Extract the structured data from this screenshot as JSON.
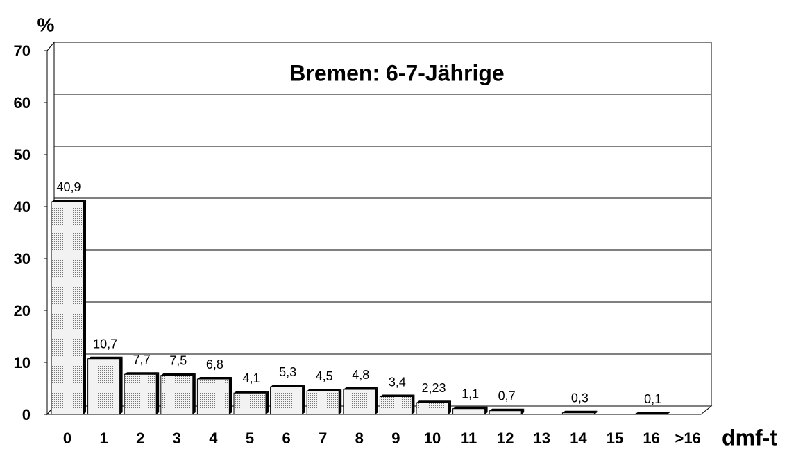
{
  "chart_data": {
    "type": "bar",
    "title": "Bremen: 6-7-Jährige",
    "y_label": "%",
    "x_label": "dmf-t",
    "categories": [
      "0",
      "1",
      "2",
      "3",
      "4",
      "5",
      "6",
      "7",
      "8",
      "9",
      "10",
      "11",
      "12",
      "13",
      "14",
      "15",
      "16",
      ">16"
    ],
    "values": [
      40.9,
      10.7,
      7.7,
      7.5,
      6.8,
      4.1,
      5.3,
      4.5,
      4.8,
      3.4,
      2.23,
      1.1,
      0.7,
      null,
      0.3,
      null,
      0.1,
      null
    ],
    "value_labels": [
      "40,9",
      "10,7",
      "7,7",
      "7,5",
      "6,8",
      "4,1",
      "5,3",
      "4,5",
      "4,8",
      "3,4",
      "2,23",
      "1,1",
      "0,7",
      null,
      "0,3",
      null,
      "0,1",
      null
    ],
    "color": "#d8d8d8",
    "ylim": [
      0,
      70
    ],
    "yticks": [
      0,
      10,
      20,
      30,
      40,
      50,
      60,
      70
    ],
    "grid": true
  }
}
